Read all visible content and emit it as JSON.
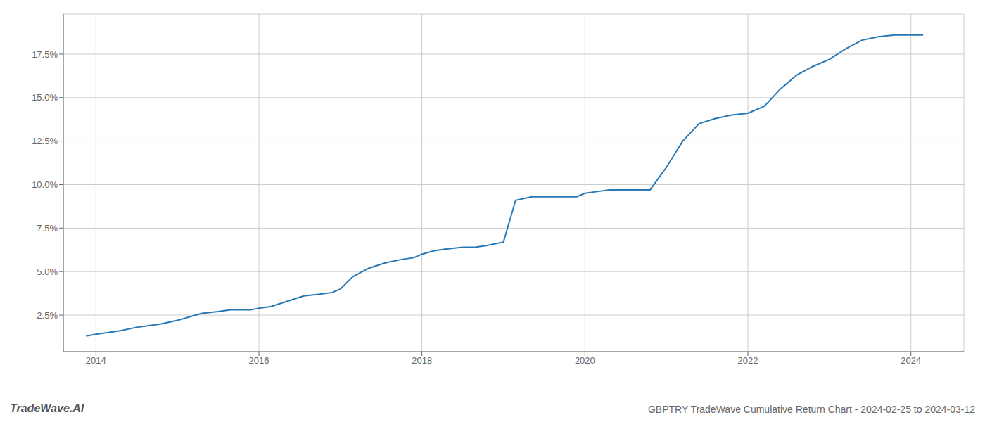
{
  "chart_data": {
    "type": "line",
    "title": "GBPTRY TradeWave Cumulative Return Chart - 2024-02-25 to 2024-03-12",
    "annotations": [
      "TradeWave.AI"
    ],
    "color": "#2878b5",
    "grid": true,
    "x": [
      2013.88,
      2014.0,
      2014.15,
      2014.3,
      2014.5,
      2014.65,
      2014.8,
      2015.0,
      2015.15,
      2015.3,
      2015.5,
      2015.65,
      2015.8,
      2015.9,
      2016.0,
      2016.15,
      2016.35,
      2016.55,
      2016.75,
      2016.9,
      2017.0,
      2017.15,
      2017.35,
      2017.55,
      2017.75,
      2017.9,
      2018.0,
      2018.15,
      2018.3,
      2018.5,
      2018.65,
      2018.8,
      2019.0,
      2019.15,
      2019.35,
      2019.55,
      2019.75,
      2019.9,
      2020.0,
      2020.15,
      2020.3,
      2020.5,
      2020.65,
      2020.8,
      2021.0,
      2021.2,
      2021.4,
      2021.6,
      2021.8,
      2022.0,
      2022.2,
      2022.4,
      2022.6,
      2022.8,
      2023.0,
      2023.2,
      2023.4,
      2023.6,
      2023.8,
      2024.0,
      2024.15
    ],
    "values": [
      0.013,
      0.014,
      0.015,
      0.016,
      0.018,
      0.019,
      0.02,
      0.022,
      0.024,
      0.026,
      0.027,
      0.028,
      0.028,
      0.028,
      0.029,
      0.03,
      0.033,
      0.036,
      0.037,
      0.038,
      0.04,
      0.047,
      0.052,
      0.055,
      0.057,
      0.058,
      0.06,
      0.062,
      0.063,
      0.064,
      0.064,
      0.065,
      0.067,
      0.091,
      0.093,
      0.093,
      0.093,
      0.093,
      0.095,
      0.096,
      0.097,
      0.097,
      0.097,
      0.097,
      0.11,
      0.125,
      0.135,
      0.138,
      0.14,
      0.141,
      0.145,
      0.155,
      0.163,
      0.168,
      0.172,
      0.178,
      0.183,
      0.185,
      0.186,
      0.186,
      0.186
    ],
    "xlim": [
      2013.6,
      2024.65
    ],
    "ylim": [
      0.004,
      0.198
    ],
    "xticks": [
      2014,
      2016,
      2018,
      2020,
      2022,
      2024
    ],
    "yticks": [
      {
        "value": 0.025,
        "label": "2.5%"
      },
      {
        "value": 0.05,
        "label": "5.0%"
      },
      {
        "value": 0.075,
        "label": "7.5%"
      },
      {
        "value": 0.1,
        "label": "10.0%"
      },
      {
        "value": 0.125,
        "label": "12.5%"
      },
      {
        "value": 0.15,
        "label": "15.0%"
      },
      {
        "value": 0.175,
        "label": "17.5%"
      }
    ]
  }
}
